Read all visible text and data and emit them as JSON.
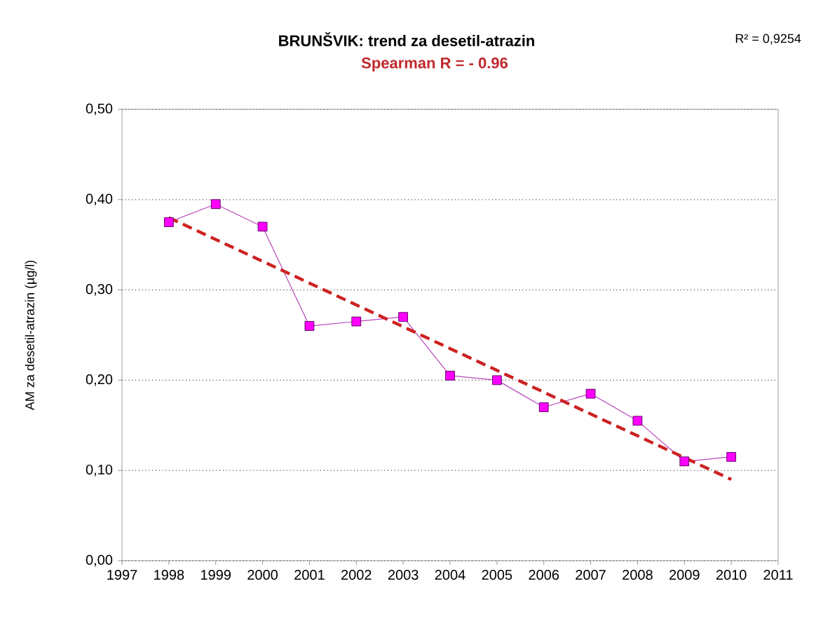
{
  "chart_data": {
    "type": "line",
    "title": "BRUNŠVIK: trend za desetil-atrazin",
    "subtitle": "Spearman R = - 0.96",
    "ylabel": "AM za desetil-atrazin (µg/l)",
    "annotations": [
      "R² = 0,9254"
    ],
    "x": [
      1998,
      1999,
      2000,
      2001,
      2002,
      2003,
      2004,
      2005,
      2006,
      2007,
      2008,
      2009,
      2010
    ],
    "series": [
      {
        "color": "#ff00ff",
        "marker": "square",
        "values": [
          0.375,
          0.395,
          0.37,
          0.26,
          0.265,
          0.27,
          0.205,
          0.2,
          0.17,
          0.185,
          0.155,
          0.11,
          0.115
        ]
      },
      {
        "type": "line",
        "color": "#cc2222",
        "line_style": "dashed",
        "marker": "none",
        "x": [
          1998,
          2010
        ],
        "values": [
          0.38,
          0.09
        ]
      }
    ],
    "xlim": [
      1997,
      2011
    ],
    "xticks": [
      1997,
      1998,
      1999,
      2000,
      2001,
      2002,
      2003,
      2004,
      2005,
      2006,
      2007,
      2008,
      2009,
      2010,
      2011
    ],
    "ylim": [
      0,
      0.5
    ],
    "yticks": [
      {
        "value": 0,
        "label": "0,00"
      },
      {
        "value": 0.1,
        "label": "0,10"
      },
      {
        "value": 0.2,
        "label": "0,20"
      },
      {
        "value": 0.3,
        "label": "0,30"
      },
      {
        "value": 0.4,
        "label": "0,40"
      },
      {
        "value": 0.5,
        "label": "0,50"
      }
    ],
    "grid": "y"
  }
}
